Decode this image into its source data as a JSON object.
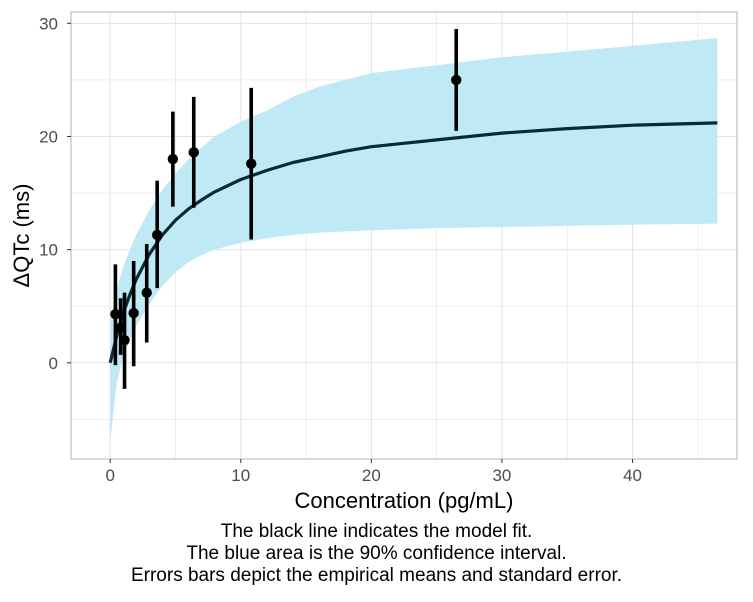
{
  "chart_data": {
    "type": "line",
    "title": "",
    "xlabel": "Concentration (pg/mL)",
    "ylabel": "ΔQTc (ms)",
    "xlim": [
      -3,
      48
    ],
    "ylim": [
      -8.5,
      31
    ],
    "x_ticks": [
      0,
      10,
      20,
      30,
      40
    ],
    "y_ticks": [
      0,
      10,
      20,
      30
    ],
    "x_tick_labels": [
      "0",
      "10",
      "20",
      "30",
      "40"
    ],
    "y_tick_labels": [
      "0",
      "10",
      "20",
      "30"
    ],
    "grid": true,
    "model_fit": {
      "name": "model fit",
      "color": "#0a2a33",
      "x": [
        0,
        0.5,
        1,
        1.5,
        2,
        3,
        4,
        5,
        6,
        7,
        8,
        10,
        12,
        14,
        16,
        18,
        20,
        25,
        30,
        35,
        40,
        46.5
      ],
      "y": [
        0,
        2.4,
        4.4,
        6.0,
        7.4,
        9.6,
        11.3,
        12.6,
        13.6,
        14.4,
        15.1,
        16.2,
        17.0,
        17.7,
        18.2,
        18.7,
        19.1,
        19.7,
        20.3,
        20.7,
        21.0,
        21.2
      ]
    },
    "confidence_interval": {
      "name": "90% confidence interval",
      "color": "#bfe9f5",
      "x": [
        0,
        0.5,
        1,
        1.5,
        2,
        3,
        4,
        5,
        6,
        7,
        8,
        10,
        12,
        14,
        16,
        18,
        20,
        25,
        30,
        35,
        40,
        46.5
      ],
      "lower": [
        -7,
        -1.8,
        0.5,
        2.0,
        3.3,
        5.2,
        6.8,
        8.0,
        8.9,
        9.5,
        10.0,
        10.6,
        11.0,
        11.3,
        11.5,
        11.6,
        11.7,
        11.9,
        12.0,
        12.1,
        12.2,
        12.3
      ],
      "upper": [
        3.5,
        6.5,
        8.5,
        10.0,
        11.3,
        13.5,
        15.3,
        16.7,
        18.0,
        19.0,
        20.0,
        21.3,
        22.3,
        23.5,
        24.4,
        25.0,
        25.6,
        26.3,
        27.0,
        27.5,
        28.0,
        28.7
      ]
    },
    "empirical_means": {
      "name": "empirical means and standard error",
      "color": "#000000",
      "points": [
        {
          "x": 0.4,
          "y": 4.3,
          "lower": -0.2,
          "upper": 8.7
        },
        {
          "x": 0.8,
          "y": 3.1,
          "lower": 0.7,
          "upper": 5.7
        },
        {
          "x": 1.1,
          "y": 2.0,
          "lower": -2.3,
          "upper": 6.2
        },
        {
          "x": 1.8,
          "y": 4.4,
          "lower": -0.3,
          "upper": 9.0
        },
        {
          "x": 2.8,
          "y": 6.2,
          "lower": 1.8,
          "upper": 10.5
        },
        {
          "x": 3.6,
          "y": 11.3,
          "lower": 6.6,
          "upper": 16.1
        },
        {
          "x": 4.8,
          "y": 18.0,
          "lower": 13.8,
          "upper": 22.2
        },
        {
          "x": 6.4,
          "y": 18.6,
          "lower": 13.7,
          "upper": 23.5
        },
        {
          "x": 10.8,
          "y": 17.6,
          "lower": 10.9,
          "upper": 24.3
        },
        {
          "x": 26.5,
          "y": 25.0,
          "lower": 20.5,
          "upper": 29.5
        }
      ]
    },
    "caption_lines": [
      "The black line indicates the model fit.",
      "The blue area is the 90% confidence interval.",
      "Errors bars depict the empirical means and standard error."
    ]
  }
}
